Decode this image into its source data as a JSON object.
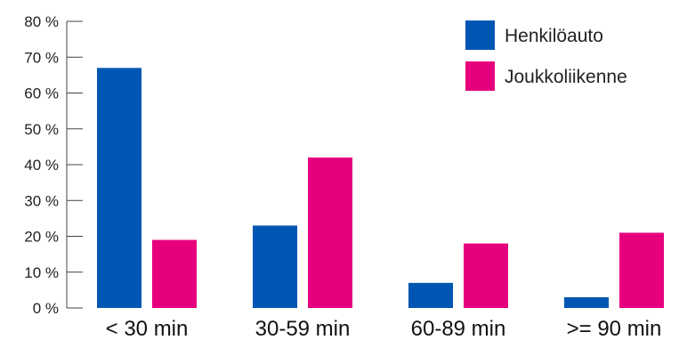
{
  "chart_data": {
    "type": "bar",
    "categories": [
      "< 30 min",
      "30-59 min",
      "60-89 min",
      ">= 90 min"
    ],
    "series": [
      {
        "name": "Henkilöauto",
        "color": "#0056b3",
        "values": [
          67,
          23,
          7,
          3
        ]
      },
      {
        "name": "Joukkoliikenne",
        "color": "#e6007e",
        "values": [
          19,
          42,
          18,
          21
        ]
      }
    ],
    "yticks": [
      "0 %",
      "10 %",
      "20 %",
      "30 %",
      "40 %",
      "50 %",
      "60 %",
      "70 %",
      "80 %"
    ],
    "ylim": [
      0,
      80
    ],
    "grid": false,
    "legend_position": "top-right",
    "title": "",
    "xlabel": "",
    "ylabel": ""
  }
}
